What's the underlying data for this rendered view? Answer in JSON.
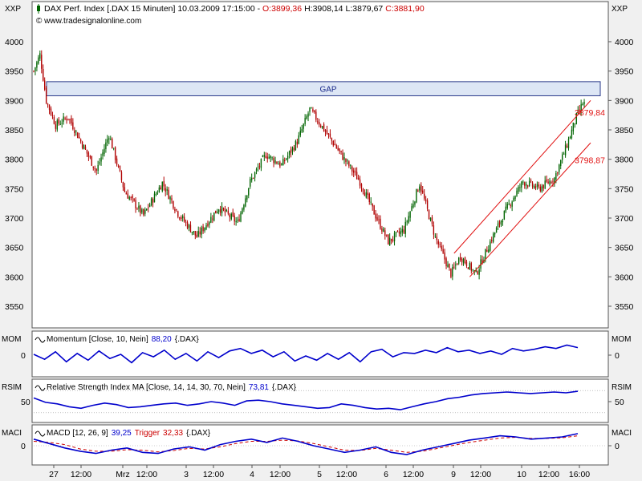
{
  "header": {
    "series_icon": "candlestick-icon",
    "title": "DAX Perf. Index [.DAX 15 Minuten] 10.03.2009 17:15:00 - ",
    "open": "O:3899,36",
    "high": "H:3908,14",
    "low": "L:3879,67",
    "close": "C:3881,90",
    "copyright": "© www.tradesignalonline.com",
    "unit_left": "XXP",
    "unit_right": "XXP"
  },
  "colors": {
    "panel_bg": "#ffffff",
    "page_bg": "#f0f0f0",
    "bull": "#006400",
    "bear": "#b00000",
    "channel": "#e01010",
    "indicator": "#0000cc",
    "trigger": "#cc0000",
    "gap_fill": "#dde6f5",
    "gap_stroke": "#2a3a8a",
    "ohlc_open": "#cc0000",
    "ohlc_close": "#cc0000"
  },
  "chart_data": [
    {
      "type": "candlestick",
      "title": "DAX Perf. Index [.DAX 15 Minuten] 10.03.2009 17:15:00",
      "ylim": [
        3500,
        4020
      ],
      "y_ticks": [
        "3550",
        "3600",
        "3650",
        "3700",
        "3750",
        "3800",
        "3850",
        "3900",
        "3950",
        "4000"
      ],
      "x_ticks": [
        "27",
        "12:00",
        "Mrz",
        "12:00",
        "3",
        "12:00",
        "4",
        "12:00",
        "5",
        "12:00",
        "6",
        "12:00",
        "9",
        "12:00",
        "10",
        "12:00",
        "16:00"
      ],
      "price_path": [
        [
          0,
          3950
        ],
        [
          4,
          3978
        ],
        [
          8,
          3900
        ],
        [
          14,
          3858
        ],
        [
          22,
          3872
        ],
        [
          32,
          3820
        ],
        [
          40,
          3780
        ],
        [
          48,
          3842
        ],
        [
          58,
          3745
        ],
        [
          70,
          3705
        ],
        [
          82,
          3760
        ],
        [
          92,
          3708
        ],
        [
          104,
          3668
        ],
        [
          118,
          3718
        ],
        [
          130,
          3692
        ],
        [
          138,
          3762
        ],
        [
          148,
          3808
        ],
        [
          158,
          3790
        ],
        [
          168,
          3830
        ],
        [
          176,
          3885
        ],
        [
          184,
          3855
        ],
        [
          196,
          3808
        ],
        [
          208,
          3762
        ],
        [
          216,
          3715
        ],
        [
          226,
          3660
        ],
        [
          236,
          3680
        ],
        [
          246,
          3758
        ],
        [
          256,
          3668
        ],
        [
          266,
          3605
        ],
        [
          272,
          3635
        ],
        [
          282,
          3605
        ],
        [
          292,
          3665
        ],
        [
          302,
          3718
        ],
        [
          312,
          3762
        ],
        [
          322,
          3750
        ],
        [
          332,
          3768
        ],
        [
          340,
          3825
        ],
        [
          346,
          3872
        ],
        [
          350,
          3895
        ]
      ],
      "annotations": [
        {
          "type": "zone",
          "label": "GAP",
          "y_from": 3908,
          "y_to": 3932,
          "x_from": 0.05
        },
        {
          "type": "channel_upper",
          "from": [
            268,
            3640
          ],
          "to": [
            352,
            3900
          ],
          "label": "3879,84",
          "label_y": 3879.84
        },
        {
          "type": "channel_lower",
          "from": [
            278,
            3600
          ],
          "to": [
            352,
            3828
          ],
          "label": "3798,87",
          "label_y": 3798.87
        }
      ],
      "legend_entries": []
    },
    {
      "type": "line",
      "name": "MOM",
      "label": "Momentum [Close, 10, Nein]",
      "value": "88,20",
      "ticker": "{.DAX}",
      "y_ticks": [
        "0"
      ],
      "ylim": [
        -120,
        120
      ],
      "values": [
        5,
        -25,
        20,
        -40,
        10,
        -30,
        25,
        -20,
        5,
        -45,
        15,
        -10,
        30,
        -25,
        10,
        -35,
        20,
        -15,
        25,
        40,
        10,
        30,
        -10,
        20,
        -35,
        -5,
        -30,
        10,
        -25,
        15,
        -40,
        20,
        35,
        -10,
        15,
        10,
        30,
        15,
        45,
        20,
        30,
        10,
        25,
        5,
        40,
        25,
        35,
        50,
        40,
        60,
        45
      ]
    },
    {
      "type": "line",
      "name": "RSIM",
      "label": "Relative Strength Index MA [Close, 14, 14, 30, 70, Nein]",
      "value": "73,81",
      "ticker": "{.DAX}",
      "y_ticks": [
        "50"
      ],
      "ylim": [
        0,
        100
      ],
      "values": [
        60,
        48,
        44,
        36,
        32,
        40,
        46,
        42,
        34,
        36,
        40,
        44,
        46,
        40,
        44,
        50,
        46,
        40,
        52,
        54,
        50,
        44,
        40,
        36,
        32,
        34,
        44,
        40,
        34,
        30,
        32,
        28,
        36,
        44,
        50,
        58,
        62,
        68,
        72,
        74,
        76,
        74,
        72,
        74,
        76,
        74,
        78
      ]
    },
    {
      "type": "line",
      "name": "MACI",
      "label": "MACD [12, 26, 9]",
      "value": "39,25",
      "trigger_label": "Trigger",
      "trigger_value": "32,33",
      "ticker": "{.DAX}",
      "y_ticks": [
        "0"
      ],
      "ylim": [
        -80,
        80
      ],
      "values": [
        30,
        10,
        -10,
        -25,
        -35,
        -20,
        -10,
        -30,
        -35,
        -15,
        -5,
        -20,
        5,
        20,
        30,
        15,
        35,
        20,
        0,
        -15,
        -30,
        -20,
        -5,
        -30,
        -40,
        -20,
        -5,
        10,
        25,
        35,
        45,
        40,
        30,
        35,
        40,
        55
      ],
      "trigger_values": [
        20,
        15,
        5,
        -15,
        -25,
        -25,
        -18,
        -20,
        -28,
        -22,
        -12,
        -15,
        -5,
        10,
        20,
        20,
        25,
        22,
        10,
        -5,
        -20,
        -22,
        -12,
        -20,
        -30,
        -25,
        -12,
        2,
        15,
        25,
        35,
        38,
        33,
        33,
        36,
        45
      ]
    }
  ]
}
